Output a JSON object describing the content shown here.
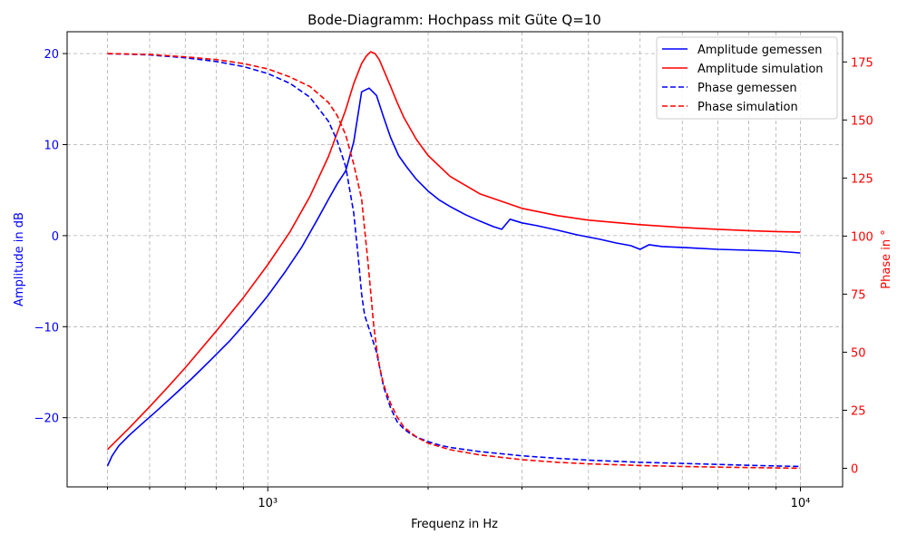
{
  "chart_data": {
    "type": "line",
    "title": "Bode-Diagramm: Hochpass mit Güte Q=10",
    "xlabel": "Frequenz in Hz",
    "ylabel": "Amplitude in dB",
    "y2label": "Phase in °",
    "xscale": "log",
    "xlim": [
      420,
      12000
    ],
    "ylim": [
      -27.6,
      22.4
    ],
    "y2lim": [
      -8,
      188
    ],
    "grid": true,
    "legend_position": "top-right",
    "x_ticks": [
      {
        "value": 1000,
        "label": "10³"
      },
      {
        "value": 10000,
        "label": "10⁴"
      }
    ],
    "y_ticks": [
      -20,
      -10,
      0,
      10,
      20
    ],
    "y2_ticks": [
      0,
      25,
      50,
      75,
      100,
      125,
      150,
      175
    ],
    "colors": {
      "left_axis": "#0000ff",
      "right_axis": "#ff0000"
    },
    "series": [
      {
        "name": "Amplitude gemessen",
        "axis": "left",
        "color": "#0000ff",
        "dash": "solid",
        "x": [
          500,
          510,
          525,
          550,
          580,
          620,
          670,
          720,
          780,
          850,
          920,
          1000,
          1080,
          1160,
          1240,
          1300,
          1350,
          1400,
          1450,
          1500,
          1550,
          1600,
          1650,
          1700,
          1760,
          1820,
          1900,
          2000,
          2100,
          2200,
          2350,
          2500,
          2650,
          2750,
          2850,
          3000,
          3200,
          3500,
          3800,
          4200,
          4500,
          4800,
          5000,
          5200,
          5500,
          6000,
          7000,
          8000,
          9000,
          10000
        ],
        "y": [
          -25.3,
          -24.2,
          -23.1,
          -21.9,
          -20.7,
          -19.2,
          -17.4,
          -15.7,
          -13.7,
          -11.5,
          -9.2,
          -6.6,
          -3.9,
          -1.2,
          1.8,
          4.0,
          5.7,
          7.1,
          10.3,
          15.8,
          16.2,
          15.4,
          13.0,
          10.8,
          8.8,
          7.6,
          6.2,
          4.9,
          3.9,
          3.2,
          2.3,
          1.6,
          1.0,
          0.7,
          1.8,
          1.4,
          1.1,
          0.6,
          0.1,
          -0.4,
          -0.8,
          -1.1,
          -1.5,
          -1.0,
          -1.2,
          -1.3,
          -1.5,
          -1.6,
          -1.7,
          -1.9
        ]
      },
      {
        "name": "Amplitude simulation",
        "axis": "left",
        "color": "#ff0000",
        "dash": "solid",
        "x": [
          500,
          550,
          600,
          650,
          700,
          800,
          900,
          1000,
          1100,
          1200,
          1300,
          1400,
          1450,
          1500,
          1530,
          1560,
          1590,
          1620,
          1650,
          1700,
          1750,
          1800,
          1900,
          2000,
          2200,
          2500,
          3000,
          3500,
          4000,
          5000,
          6000,
          7000,
          8000,
          9000,
          10000
        ],
        "y": [
          -23.5,
          -21.1,
          -18.8,
          -16.6,
          -14.5,
          -10.5,
          -6.8,
          -3.2,
          0.4,
          4.3,
          8.7,
          13.8,
          16.7,
          18.9,
          19.7,
          20.2,
          20.0,
          19.3,
          18.2,
          16.4,
          14.6,
          13.0,
          10.6,
          8.8,
          6.5,
          4.6,
          3.0,
          2.2,
          1.7,
          1.2,
          0.9,
          0.7,
          0.55,
          0.45,
          0.4
        ]
      },
      {
        "name": "Phase gemessen",
        "axis": "right",
        "color": "#0000ff",
        "dash": "dashed",
        "x": [
          500,
          550,
          600,
          700,
          800,
          900,
          1000,
          1100,
          1200,
          1300,
          1350,
          1400,
          1450,
          1480,
          1500,
          1520,
          1550,
          1600,
          1650,
          1700,
          1750,
          1800,
          1850,
          1900,
          2000,
          2100,
          2200,
          2500,
          3000,
          3500,
          4000,
          5000,
          6000,
          7000,
          8000,
          9000,
          10000
        ],
        "y": [
          178.5,
          178.3,
          178.0,
          176.8,
          175.2,
          173.0,
          170.0,
          165.8,
          159.8,
          149.4,
          141.0,
          130.0,
          110.0,
          90.0,
          75.0,
          66.0,
          60.0,
          50.0,
          35.0,
          26.0,
          20.0,
          17.0,
          15.0,
          13.5,
          11.5,
          10.0,
          9.0,
          7.2,
          5.4,
          4.3,
          3.5,
          2.6,
          2.1,
          1.7,
          1.3,
          1.0,
          0.8
        ]
      },
      {
        "name": "Phase simulation",
        "axis": "right",
        "color": "#ff0000",
        "dash": "dashed",
        "x": [
          500,
          550,
          600,
          700,
          800,
          900,
          1000,
          1100,
          1200,
          1300,
          1350,
          1400,
          1450,
          1500,
          1520,
          1540,
          1560,
          1580,
          1600,
          1620,
          1650,
          1700,
          1750,
          1800,
          1900,
          2000,
          2200,
          2500,
          3000,
          3500,
          4000,
          5000,
          6000,
          7000,
          8000,
          9000,
          10000
        ],
        "y": [
          178.6,
          178.4,
          178.2,
          177.2,
          176.0,
          174.3,
          172.0,
          168.5,
          164.4,
          157.5,
          151.9,
          143.6,
          131.0,
          116.0,
          103.0,
          90.0,
          76.0,
          62.0,
          52.0,
          44.0,
          36.0,
          28.0,
          22.0,
          17.8,
          13.5,
          10.8,
          8.0,
          5.8,
          3.7,
          2.6,
          1.9,
          1.2,
          0.8,
          0.5,
          0.3,
          0.15,
          0.0
        ]
      }
    ]
  }
}
